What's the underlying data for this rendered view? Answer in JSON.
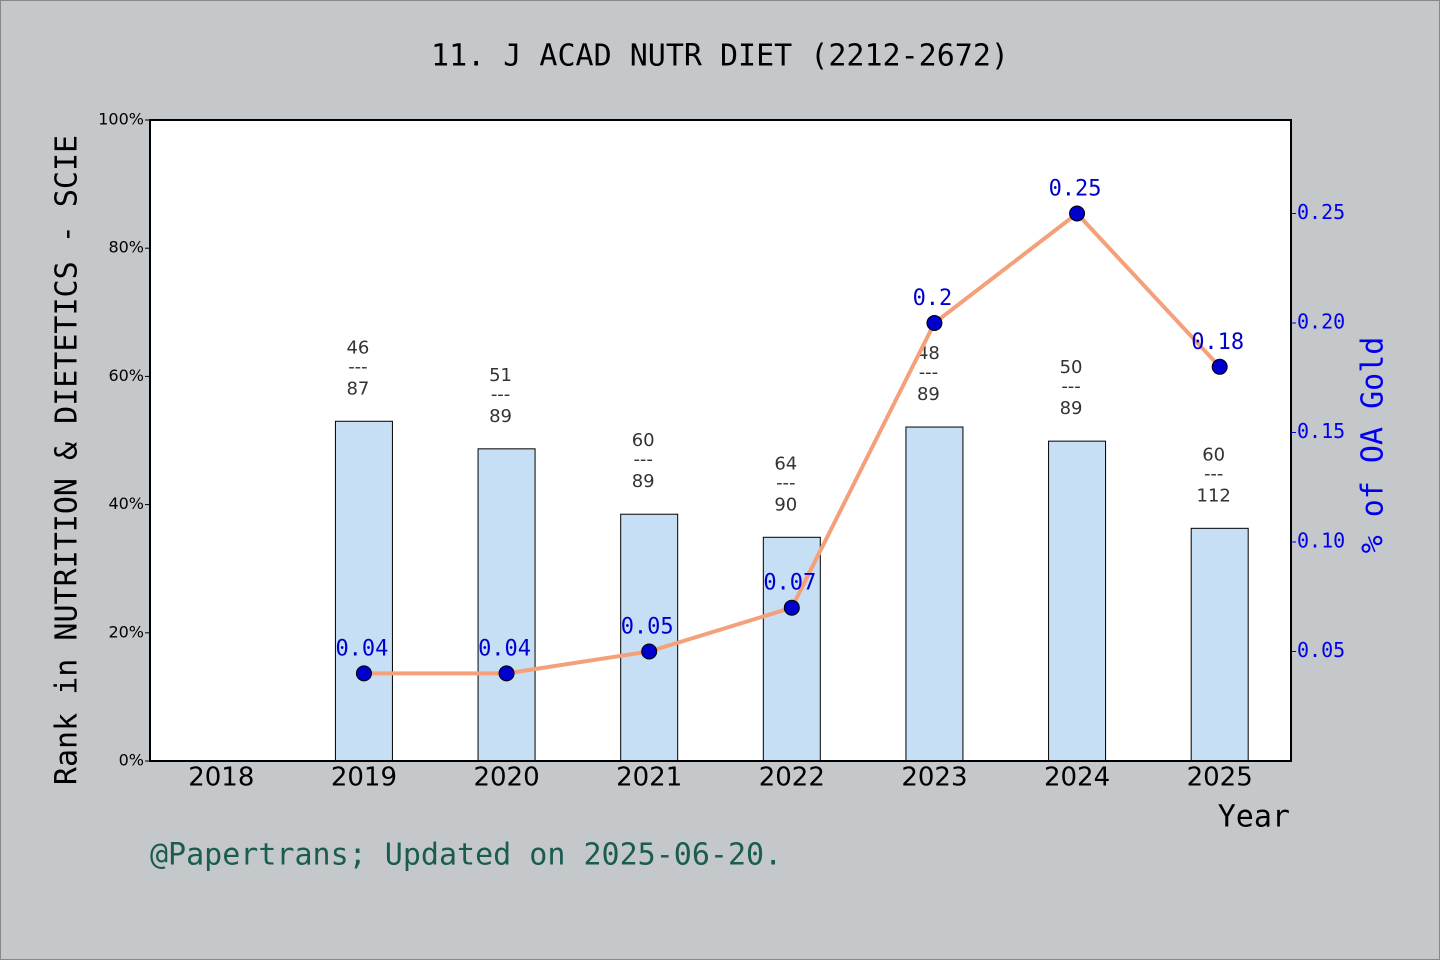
{
  "chart_data": {
    "type": "bar",
    "title": "11. J ACAD NUTR DIET (2212-2672)",
    "ylabel": "Rank in NUTRITION & DIETETICS - SCIE",
    "y2label": "% of OA Gold",
    "xlabel": "Year",
    "footer": "@Papertrans; Updated on 2025-06-20.",
    "categories": [
      "2018",
      "2019",
      "2020",
      "2021",
      "2022",
      "2023",
      "2024",
      "2025"
    ],
    "series": [
      {
        "type": "bar",
        "color": "#c6dff5",
        "values": [
          null,
          53.0,
          48.7,
          38.5,
          34.9,
          52.1,
          49.9,
          36.3
        ],
        "bar_labels": [
          null,
          [
            "46",
            "---",
            "87"
          ],
          [
            "51",
            "---",
            "89"
          ],
          [
            "60",
            "---",
            "89"
          ],
          [
            "64",
            "---",
            "90"
          ],
          [
            "48",
            "---",
            "89"
          ],
          [
            "50",
            "---",
            "89"
          ],
          [
            "60",
            "---",
            "112"
          ]
        ]
      },
      {
        "type": "line",
        "axis": "y2",
        "color": "#f4a07a",
        "marker_color": "#0000cc",
        "label_color": "#0000cc",
        "values": [
          null,
          0.04,
          0.04,
          0.05,
          0.07,
          0.2,
          0.25,
          0.18
        ]
      }
    ],
    "ylim": [
      0,
      100
    ],
    "yticks": [
      {
        "value": 0,
        "label": "0%"
      },
      {
        "value": 20,
        "label": "20%"
      },
      {
        "value": 40,
        "label": "40%"
      },
      {
        "value": 60,
        "label": "60%"
      },
      {
        "value": 80,
        "label": "80%"
      },
      {
        "value": 100,
        "label": "100%"
      }
    ],
    "y2lim": [
      0,
      0.2927
    ],
    "y2ticks": [
      0.05,
      {
        "value": 0.1,
        "label": "0.10"
      },
      0.15,
      {
        "value": 0.2,
        "label": "0.20"
      },
      0.25
    ],
    "y2_color": "#0000ee"
  }
}
